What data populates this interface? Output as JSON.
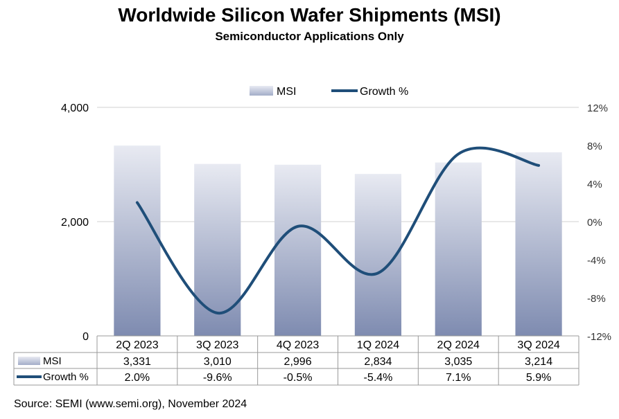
{
  "chart_data": {
    "type": "bar",
    "title": "Worldwide Silicon Wafer Shipments (MSI)",
    "subtitle": "Semiconductor Applications Only",
    "categories": [
      "2Q 2023",
      "3Q 2023",
      "4Q 2023",
      "1Q 2024",
      "2Q 2024",
      "3Q 2024"
    ],
    "series": [
      {
        "name": "MSI",
        "type": "bar",
        "axis": "left",
        "values": [
          3331,
          3010,
          2996,
          2834,
          3035,
          3214
        ],
        "labels": [
          "3,331",
          "3,010",
          "2,996",
          "2,834",
          "3,035",
          "3,214"
        ]
      },
      {
        "name": "Growth %",
        "type": "line",
        "axis": "right",
        "values": [
          2.0,
          -9.6,
          -0.5,
          -5.4,
          7.1,
          5.9
        ],
        "labels": [
          "2.0%",
          "-9.6%",
          "-0.5%",
          "-5.4%",
          "7.1%",
          "5.9%"
        ]
      }
    ],
    "left_axis": {
      "ylim": [
        0,
        4000
      ],
      "ticks": [
        "0",
        "2,000",
        "4,000"
      ]
    },
    "right_axis": {
      "ylim": [
        -12,
        12
      ],
      "ticks": [
        "-12%",
        "-8%",
        "-4%",
        "0%",
        "4%",
        "8%",
        "12%"
      ]
    },
    "legend_position": "top",
    "grid": true,
    "data_table": true,
    "colors": {
      "bar_top": "#e8eaf2",
      "bar_bottom": "#7e8bb0",
      "line": "#1f4e79",
      "grid": "#d0d0d0"
    }
  },
  "source": "Source: SEMI (www.semi.org), November 2024"
}
